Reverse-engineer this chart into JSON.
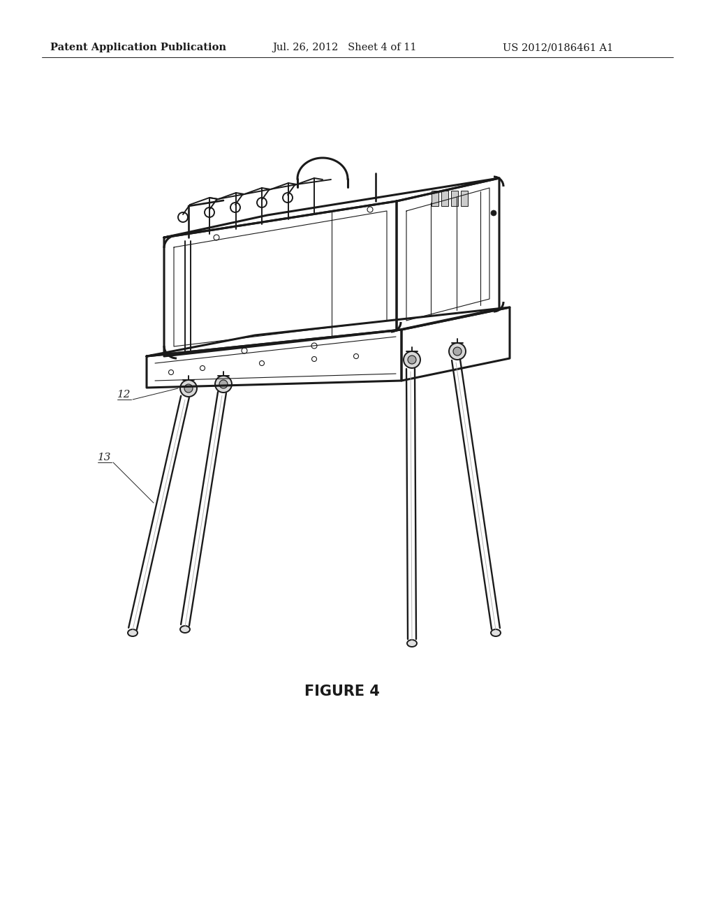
{
  "background_color": "#ffffff",
  "header_left": "Patent Application Publication",
  "header_center": "Jul. 26, 2012   Sheet 4 of 11",
  "header_right": "US 2012/0186461 A1",
  "figure_caption": "FIGURE 4",
  "label_12": "12",
  "label_13": "13",
  "line_color": "#1a1a1a",
  "label_color": "#222222",
  "header_fontsize": 10.5,
  "caption_fontsize": 15,
  "label_fontsize": 11
}
